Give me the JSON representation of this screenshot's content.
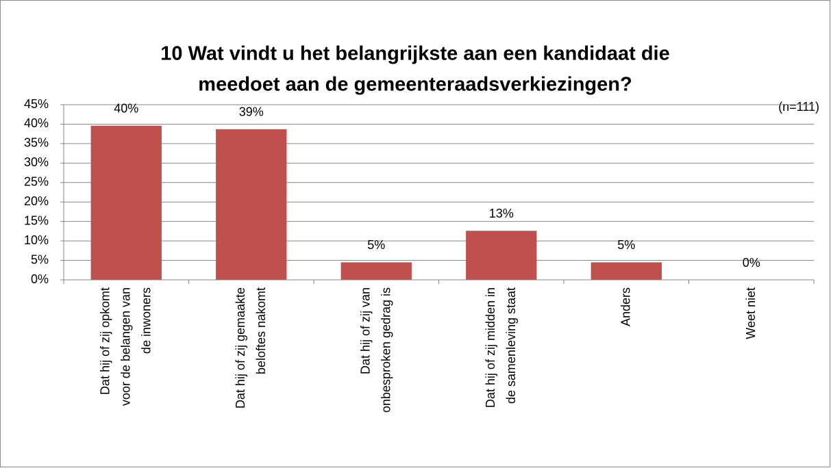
{
  "chart_data": {
    "type": "bar",
    "title": [
      "10 Wat vindt u het belangrijkste aan een kandidaat die",
      "meedoet aan de gemeenteraadsverkiezingen?"
    ],
    "subtitle": "(n=111)",
    "categories": [
      "Dat hij of zij opkomt\nvoor de belangen van\nde inwoners",
      "Dat hij of zij gemaakte\nbeloftes nakomt",
      "Dat hij of zij van\nonbesproken gedrag is",
      "Dat hij of zij midden in\nde samenleving staat",
      "Anders",
      "Weet niet"
    ],
    "values": [
      39.6,
      38.7,
      4.5,
      12.6,
      4.5,
      0
    ],
    "value_labels": [
      "40%",
      "39%",
      "5%",
      "13%",
      "5%",
      "0%"
    ],
    "color": "#c0504d",
    "ylim": [
      0,
      45
    ],
    "yticks": [
      {
        "value": 0,
        "label": "0%"
      },
      {
        "value": 5,
        "label": "5%"
      },
      {
        "value": 10,
        "label": "10%"
      },
      {
        "value": 15,
        "label": "15%"
      },
      {
        "value": 20,
        "label": "20%"
      },
      {
        "value": 25,
        "label": "25%"
      },
      {
        "value": 30,
        "label": "30%"
      },
      {
        "value": 35,
        "label": "35%"
      },
      {
        "value": 40,
        "label": "40%"
      },
      {
        "value": 45,
        "label": "45%"
      }
    ],
    "grid": true
  }
}
